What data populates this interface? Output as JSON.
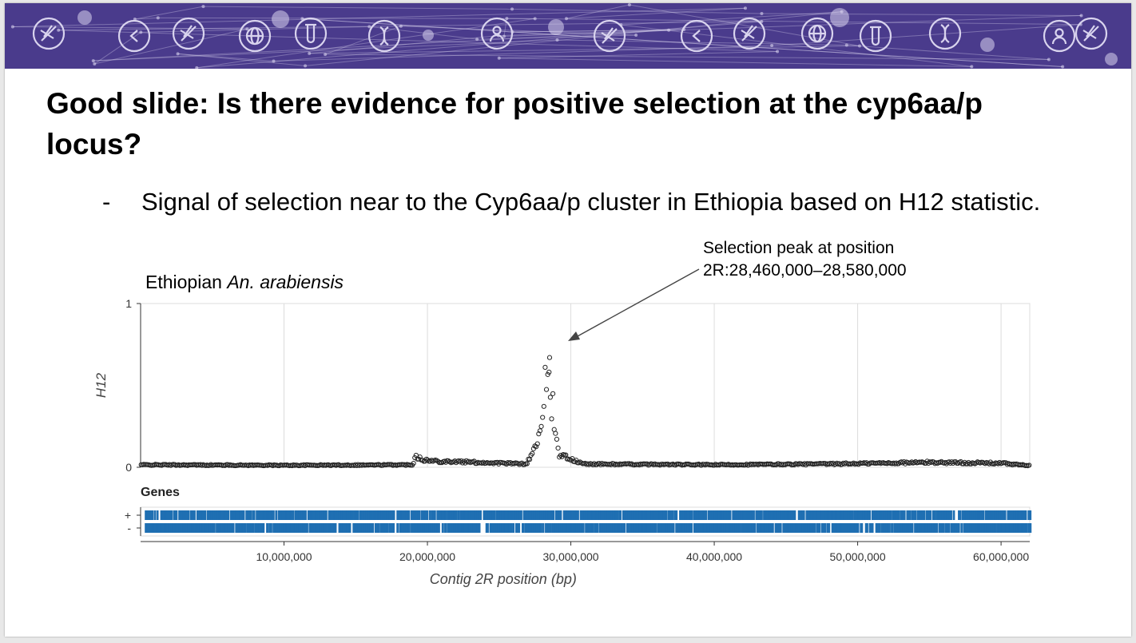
{
  "slide": {
    "title": "Good slide: Is there evidence for positive selection at the cyp6aa/p locus?",
    "bullet_marker": "-",
    "bullet_text": "Signal of selection near to the Cyp6aa/p cluster in Ethiopia based on H12 statistic.",
    "annotation_line1": "Selection peak at position",
    "annotation_line2": "2R:28,460,000–28,580,000",
    "subtitle_prefix": "Ethiopian ",
    "subtitle_species": "An. arabiensis"
  },
  "banner": {
    "background": "#4a3b8c",
    "icon_color": "#d9d4ee",
    "icons": [
      "mosquito-icon",
      "back-arrow-icon",
      "mosquito-icon",
      "globe-icon",
      "test-tube-icon",
      "dna-icon",
      "user-icon",
      "mosquito-icon",
      "globe-icon",
      "test-tube-icon",
      "dna-icon",
      "user-icon",
      "mosquito-icon",
      "back-arrow-icon",
      "mosquito-icon"
    ]
  },
  "colors": {
    "points": "#222222",
    "genes": "#1f6fb2",
    "grid": "#dcdcdc",
    "arrow": "#444444"
  },
  "chart_data": {
    "type": "scatter",
    "title": "",
    "ylabel": "H12",
    "xlabel": "Contig 2R position (bp)",
    "xlim": [
      0,
      62000000
    ],
    "ylim": [
      0,
      1
    ],
    "y_ticks": [
      0,
      1
    ],
    "x_ticks": [
      10000000,
      20000000,
      30000000,
      40000000,
      50000000,
      60000000
    ],
    "x_tick_labels": [
      "10,000,000",
      "20,000,000",
      "30,000,000",
      "40,000,000",
      "50,000,000",
      "60,000,000"
    ],
    "grid": true,
    "baseline_profile": [
      [
        0,
        0.015
      ],
      [
        10000000,
        0.012
      ],
      [
        19000000,
        0.015
      ],
      [
        19100000,
        0.07
      ],
      [
        20000000,
        0.04
      ],
      [
        26900000,
        0.02
      ],
      [
        27300000,
        0.08
      ],
      [
        28000000,
        0.25
      ],
      [
        28500000,
        0.6
      ],
      [
        28800000,
        0.3
      ],
      [
        29200000,
        0.08
      ],
      [
        30500000,
        0.03
      ],
      [
        31000000,
        0.02
      ],
      [
        40000000,
        0.015
      ],
      [
        48000000,
        0.02
      ],
      [
        55000000,
        0.03
      ],
      [
        60000000,
        0.025
      ],
      [
        62000000,
        0.01
      ]
    ],
    "peak": {
      "start": 28460000,
      "end": 28580000,
      "max_h12": 0.67
    },
    "genes_panel": {
      "title": "Genes",
      "strands": [
        "+",
        "-"
      ]
    }
  }
}
